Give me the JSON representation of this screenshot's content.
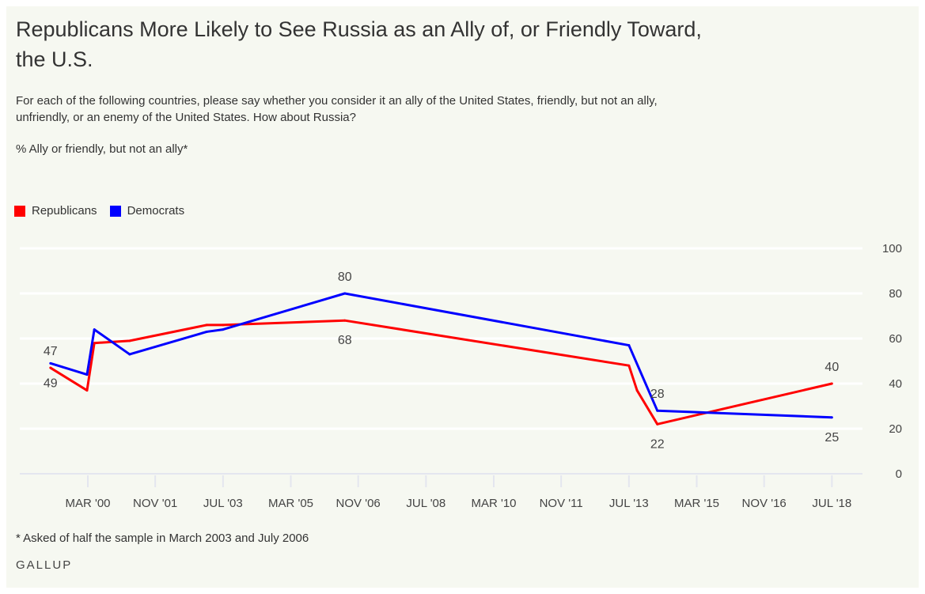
{
  "title": "Republicans More Likely to See Russia as an Ally of, or Friendly Toward, the U.S.",
  "subtitle": "For each of the following countries, please say whether you consider it an ally of the United States, friendly, but not an ally, unfriendly, or an enemy of the United States. How about Russia?",
  "measure": "% Ally or friendly, but not an ally*",
  "footnote": "* Asked of half the sample in March 2003 and July 2006",
  "brand": "GALLUP",
  "chart_data": {
    "type": "line",
    "title": "Republicans More Likely to See Russia as an Ally of, or Friendly Toward, the U.S.",
    "ylabel": "% Ally or friendly, but not an ally",
    "ylim": [
      0,
      100
    ],
    "yticks": [
      "0",
      "20",
      "40",
      "60",
      "80",
      "100"
    ],
    "xlim": [
      1998.9,
      2019.3
    ],
    "xticks": [
      {
        "label": "MAR '00",
        "x": 2000.17
      },
      {
        "label": "NOV '01",
        "x": 2001.83
      },
      {
        "label": "JUL '03",
        "x": 2003.5
      },
      {
        "label": "MAR '05",
        "x": 2005.17
      },
      {
        "label": "NOV '06",
        "x": 2006.83
      },
      {
        "label": "JUL '08",
        "x": 2008.5
      },
      {
        "label": "MAR '10",
        "x": 2010.17
      },
      {
        "label": "NOV '11",
        "x": 2011.83
      },
      {
        "label": "JUL '13",
        "x": 2013.5
      },
      {
        "label": "MAR '15",
        "x": 2015.17
      },
      {
        "label": "NOV '16",
        "x": 2016.83
      },
      {
        "label": "JUL '18",
        "x": 2018.5
      }
    ],
    "grid": true,
    "legend": "top-left",
    "series": [
      {
        "name": "Republicans",
        "color": "#ff0000",
        "x": [
          1999.25,
          2000.15,
          2000.33,
          2001.2,
          2003.1,
          2003.5,
          2006.5,
          2013.5,
          2013.7,
          2014.2,
          2018.5
        ],
        "y": [
          47,
          37,
          58,
          59,
          66,
          66,
          68,
          48,
          37,
          22,
          40
        ]
      },
      {
        "name": "Democrats",
        "color": "#0000ff",
        "x": [
          1999.25,
          2000.15,
          2000.33,
          2001.2,
          2003.1,
          2003.5,
          2006.5,
          2013.5,
          2014.2,
          2018.5
        ],
        "y": [
          49,
          44,
          64,
          53,
          63,
          64,
          80,
          57,
          28,
          25
        ]
      }
    ],
    "annotations": [
      {
        "text": "47",
        "series": "Republicans",
        "x": 1999.25,
        "pos": "above"
      },
      {
        "text": "49",
        "series": "Democrats",
        "x": 1999.25,
        "pos": "below"
      },
      {
        "text": "80",
        "series": "Democrats",
        "x": 2006.5,
        "pos": "above"
      },
      {
        "text": "68",
        "series": "Republicans",
        "x": 2006.5,
        "pos": "below"
      },
      {
        "text": "28",
        "series": "Democrats",
        "x": 2014.2,
        "pos": "above"
      },
      {
        "text": "22",
        "series": "Republicans",
        "x": 2014.2,
        "pos": "below"
      },
      {
        "text": "40",
        "series": "Republicans",
        "x": 2018.5,
        "pos": "above"
      },
      {
        "text": "25",
        "series": "Democrats",
        "x": 2018.5,
        "pos": "below"
      }
    ]
  }
}
